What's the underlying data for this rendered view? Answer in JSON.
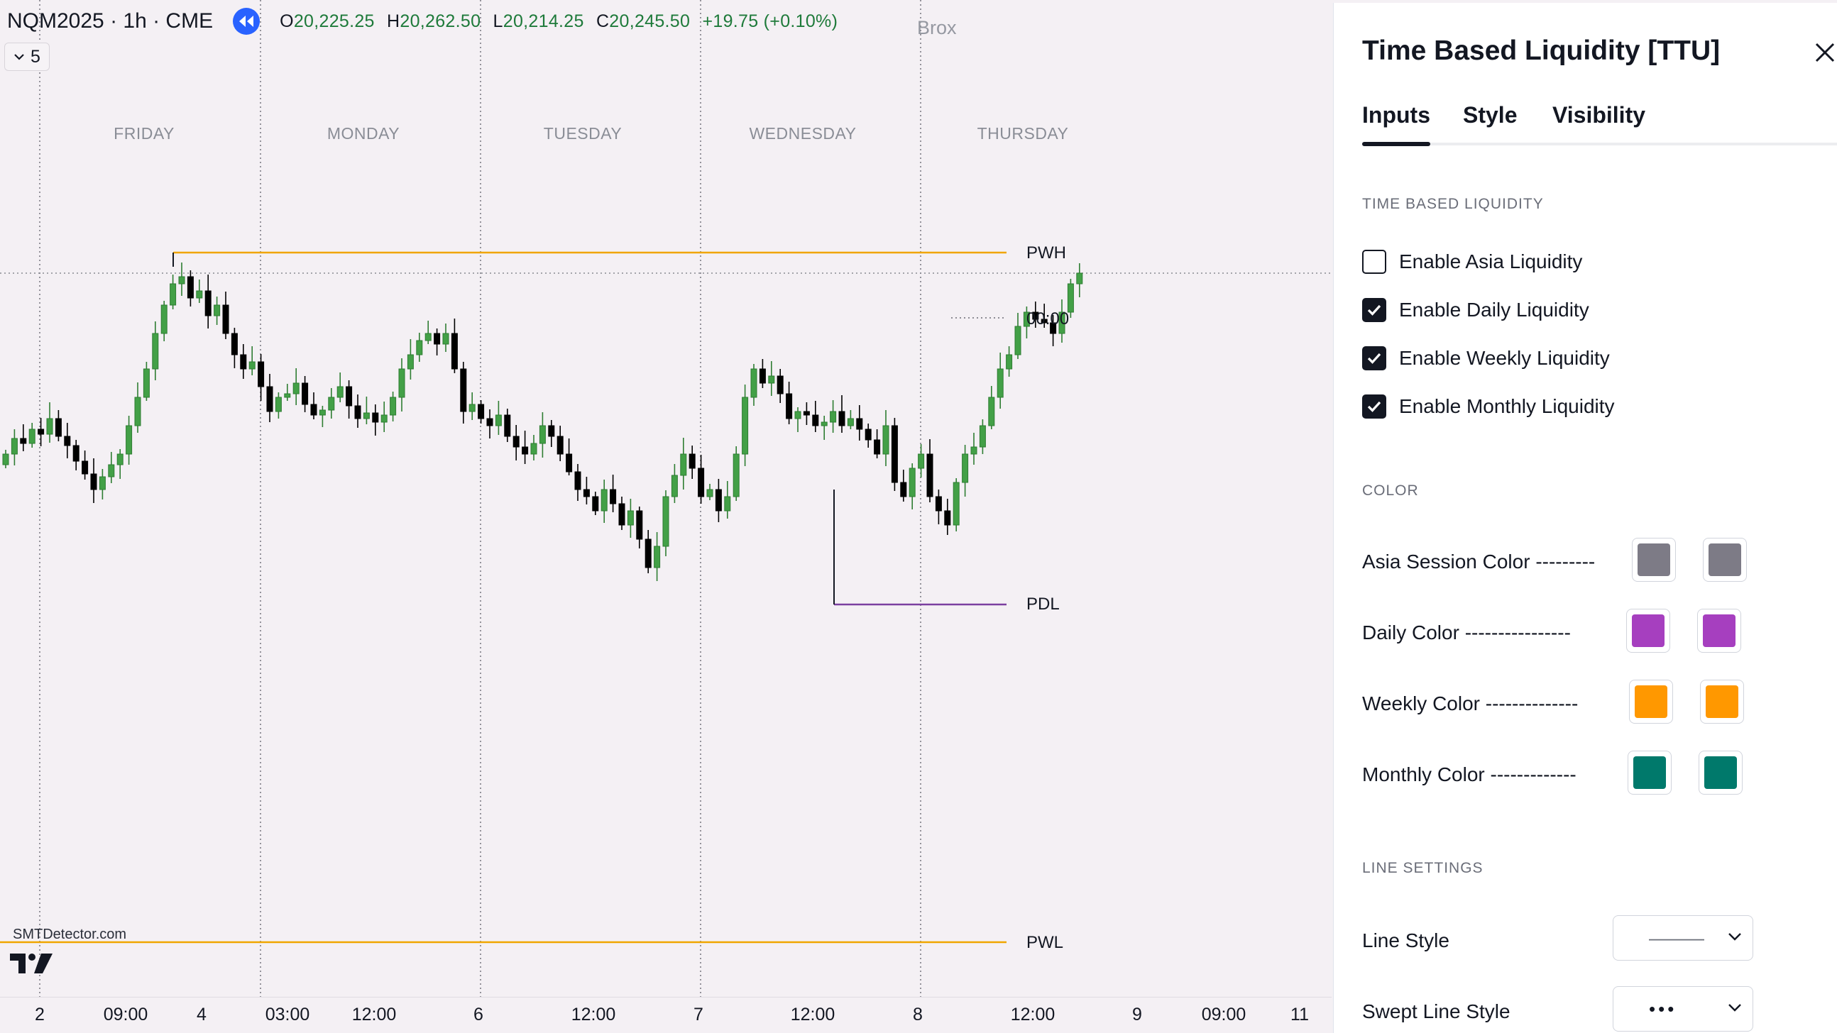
{
  "header": {
    "symbol": "NQM2025 · 1h · CME",
    "indicator_count": "5",
    "brox_label": "Brox",
    "ohlc": [
      {
        "label": "O",
        "value": "20,225.25"
      },
      {
        "label": "H",
        "value": "20,262.50"
      },
      {
        "label": "L",
        "value": "20,214.25"
      },
      {
        "label": "C",
        "value": "20,245.50"
      },
      {
        "label": "",
        "value": "+19.75 (+0.10%)"
      }
    ]
  },
  "chart": {
    "day_labels": [
      "FRIDAY",
      "MONDAY",
      "TUESDAY",
      "WEDNESDAY",
      "THURSDAY"
    ],
    "levels": {
      "pwh": "PWH",
      "countdown": "00:00",
      "pdl": "PDL",
      "pwl": "PWL"
    },
    "time_ticks": [
      "2",
      "09:00",
      "4",
      "03:00",
      "12:00",
      "6",
      "12:00",
      "7",
      "12:00",
      "8",
      "12:00",
      "9",
      "09:00",
      "11"
    ],
    "watermark": "SMTDetector.com",
    "colors": {
      "up": "#2e7d32",
      "up_fill": "#43a047",
      "down": "#000000",
      "weekly": "#f0a500",
      "daily": "#7b3fa0"
    }
  },
  "panel": {
    "title": "Time Based Liquidity [TTU]",
    "tabs": [
      "Inputs",
      "Style",
      "Visibility"
    ],
    "active_tab": "Inputs",
    "sections": {
      "tbl": "TIME BASED LIQUIDITY",
      "color": "COLOR",
      "line": "LINE SETTINGS"
    },
    "checkboxes": [
      {
        "label": "Enable Asia Liquidity",
        "checked": false
      },
      {
        "label": "Enable Daily Liquidity",
        "checked": true
      },
      {
        "label": "Enable Weekly Liquidity",
        "checked": true
      },
      {
        "label": "Enable Monthly Liquidity",
        "checked": true
      }
    ],
    "colors": [
      {
        "label": "Asia Session Color ---------",
        "c1": "#7d7b86",
        "c2": "#7d7b86"
      },
      {
        "label": "Daily Color ----------------",
        "c1": "#a63fbf",
        "c2": "#a63fbf"
      },
      {
        "label": "Weekly Color --------------",
        "c1": "#ff9800",
        "c2": "#ff9800"
      },
      {
        "label": "Monthly Color -------------",
        "c1": "#00796b",
        "c2": "#00796b"
      }
    ],
    "line_settings": [
      {
        "label": "Line Style",
        "value": "———"
      },
      {
        "label": "Swept Line Style",
        "value": "•••"
      }
    ]
  }
}
